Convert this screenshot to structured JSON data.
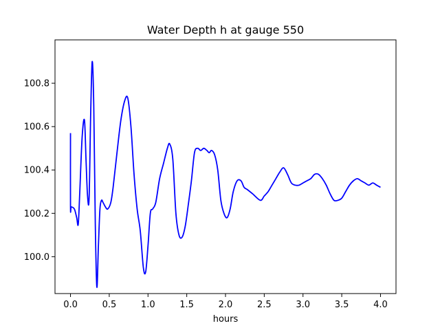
{
  "chart_data": {
    "type": "line",
    "title": "Water Depth h at gauge 550",
    "xlabel": "hours",
    "ylabel": "",
    "xlim": [
      -0.2,
      4.2
    ],
    "ylim": [
      99.83,
      101.0
    ],
    "x_ticks": [
      0.0,
      0.5,
      1.0,
      1.5,
      2.0,
      2.5,
      3.0,
      3.5,
      4.0
    ],
    "x_tick_labels": [
      "0.0",
      "0.5",
      "1.0",
      "1.5",
      "2.0",
      "2.5",
      "3.0",
      "3.5",
      "4.0"
    ],
    "y_ticks": [
      100.0,
      100.2,
      100.4,
      100.6,
      100.8
    ],
    "y_tick_labels": [
      "100.0",
      "100.2",
      "100.4",
      "100.6",
      "100.8"
    ],
    "grid": false,
    "series": [
      {
        "color": "#0000ff",
        "x": [
          0.0,
          0.0,
          0.01,
          0.05,
          0.08,
          0.1,
          0.12,
          0.15,
          0.18,
          0.2,
          0.22,
          0.24,
          0.26,
          0.28,
          0.3,
          0.32,
          0.34,
          0.36,
          0.38,
          0.4,
          0.42,
          0.45,
          0.48,
          0.52,
          0.55,
          0.6,
          0.65,
          0.7,
          0.74,
          0.78,
          0.82,
          0.86,
          0.9,
          0.94,
          0.97,
          1.0,
          1.03,
          1.06,
          1.1,
          1.15,
          1.2,
          1.25,
          1.28,
          1.32,
          1.36,
          1.4,
          1.44,
          1.48,
          1.52,
          1.56,
          1.6,
          1.64,
          1.68,
          1.72,
          1.76,
          1.79,
          1.82,
          1.86,
          1.9,
          1.94,
          1.98,
          2.02,
          2.06,
          2.1,
          2.15,
          2.2,
          2.24,
          2.28,
          2.35,
          2.45,
          2.5,
          2.55,
          2.6,
          2.65,
          2.7,
          2.75,
          2.8,
          2.85,
          2.9,
          2.95,
          3.0,
          3.05,
          3.1,
          3.15,
          3.2,
          3.25,
          3.3,
          3.35,
          3.4,
          3.45,
          3.5,
          3.55,
          3.6,
          3.65,
          3.7,
          3.75,
          3.8,
          3.85,
          3.9,
          3.95,
          4.0
        ],
        "y": [
          100.57,
          100.23,
          100.23,
          100.22,
          100.18,
          100.15,
          100.3,
          100.55,
          100.63,
          100.45,
          100.28,
          100.27,
          100.65,
          100.9,
          100.7,
          100.15,
          99.86,
          100.05,
          100.22,
          100.26,
          100.25,
          100.23,
          100.22,
          100.25,
          100.32,
          100.48,
          100.63,
          100.72,
          100.73,
          100.6,
          100.38,
          100.22,
          100.12,
          99.95,
          99.93,
          100.05,
          100.2,
          100.22,
          100.25,
          100.36,
          100.43,
          100.5,
          100.52,
          100.45,
          100.2,
          100.1,
          100.09,
          100.14,
          100.24,
          100.35,
          100.48,
          100.5,
          100.49,
          100.5,
          100.49,
          100.48,
          100.49,
          100.47,
          100.4,
          100.26,
          100.2,
          100.18,
          100.22,
          100.3,
          100.35,
          100.35,
          100.32,
          100.31,
          100.29,
          100.26,
          100.28,
          100.3,
          100.33,
          100.36,
          100.39,
          100.41,
          100.38,
          100.34,
          100.33,
          100.33,
          100.34,
          100.35,
          100.36,
          100.38,
          100.38,
          100.36,
          100.33,
          100.29,
          100.26,
          100.26,
          100.27,
          100.3,
          100.33,
          100.35,
          100.36,
          100.35,
          100.34,
          100.33,
          100.34,
          100.33,
          100.32
        ]
      }
    ]
  }
}
